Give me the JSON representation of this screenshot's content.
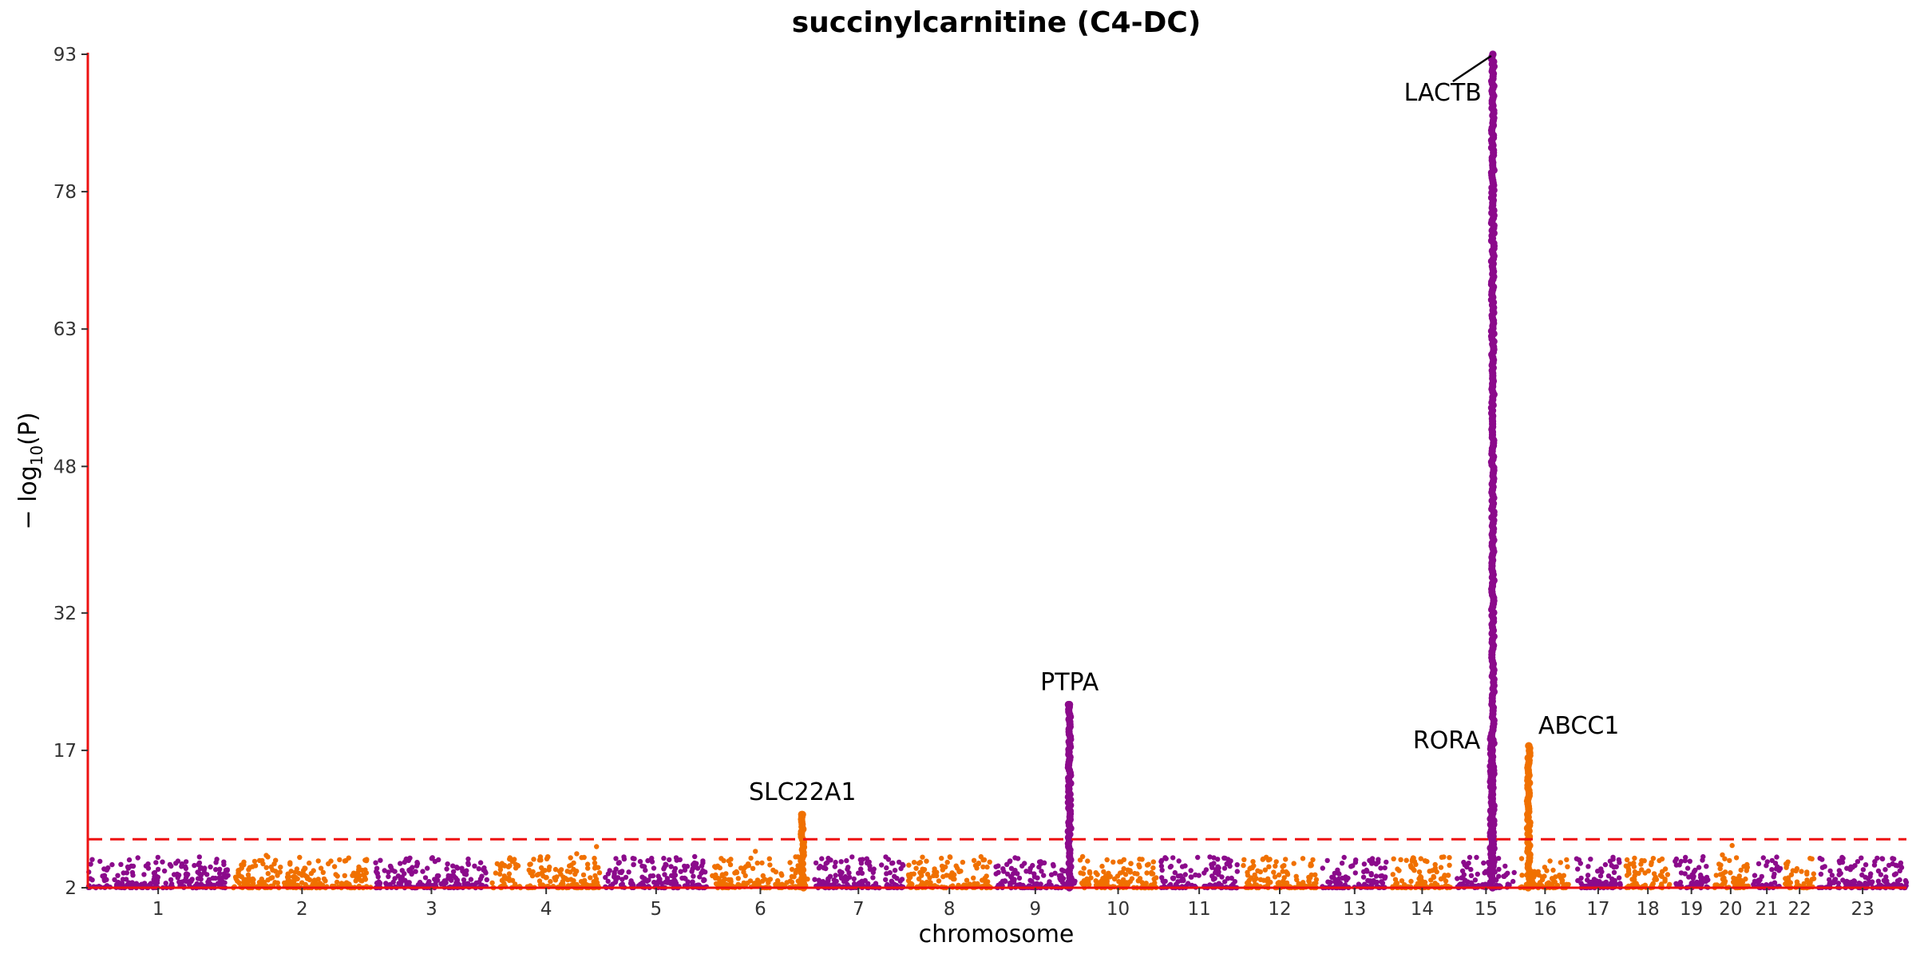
{
  "chart_data": {
    "type": "scatter",
    "title": "succinylcarnitine (C4-DC)",
    "xlabel": "chromosome",
    "ylabel_prefix": "− log",
    "ylabel_sub": "10",
    "ylabel_suffix": "(P)",
    "ylim": [
      2,
      93
    ],
    "yticks": [
      2,
      17,
      32,
      48,
      63,
      78,
      93
    ],
    "significance_threshold": 7.3,
    "colors": {
      "odd": "#8b0a8b",
      "even": "#f07000",
      "axis": "#ee1111",
      "threshold": "#ee1111"
    },
    "chromosomes": [
      {
        "chr": "1",
        "length": 249
      },
      {
        "chr": "2",
        "length": 243
      },
      {
        "chr": "3",
        "length": 198
      },
      {
        "chr": "4",
        "length": 191
      },
      {
        "chr": "5",
        "length": 181
      },
      {
        "chr": "6",
        "length": 171
      },
      {
        "chr": "7",
        "length": 159
      },
      {
        "chr": "8",
        "length": 146
      },
      {
        "chr": "9",
        "length": 141
      },
      {
        "chr": "10",
        "length": 135
      },
      {
        "chr": "11",
        "length": 135
      },
      {
        "chr": "12",
        "length": 133
      },
      {
        "chr": "13",
        "length": 115
      },
      {
        "chr": "14",
        "length": 107
      },
      {
        "chr": "15",
        "length": 102
      },
      {
        "chr": "16",
        "length": 90
      },
      {
        "chr": "17",
        "length": 81
      },
      {
        "chr": "18",
        "length": 78
      },
      {
        "chr": "19",
        "length": 59
      },
      {
        "chr": "20",
        "length": 63
      },
      {
        "chr": "21",
        "length": 48
      },
      {
        "chr": "22",
        "length": 51
      },
      {
        "chr": "23",
        "length": 155
      }
    ],
    "peaks": [
      {
        "gene": "SLC22A1",
        "chr": "6",
        "pos": 160,
        "max": 10.0
      },
      {
        "gene": "PTPA",
        "chr": "9",
        "pos": 131,
        "max": 22.0
      },
      {
        "gene": "RORA",
        "chr": "15",
        "pos": 61,
        "max": 18.5
      },
      {
        "gene": "LACTB",
        "chr": "15",
        "pos": 63,
        "max": 93.0
      },
      {
        "gene": "ABCC1",
        "chr": "16",
        "pos": 16,
        "max": 17.5
      }
    ]
  }
}
